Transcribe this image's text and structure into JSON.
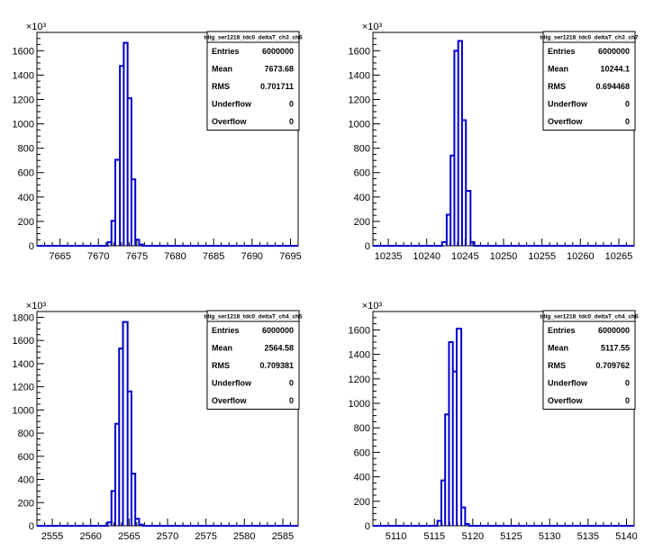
{
  "chart_data": [
    {
      "type": "histogram",
      "name": "tdig_ser1218_tdc0_deltaT_ch3_ch6",
      "x_range": [
        7662,
        7696
      ],
      "x_ticks": [
        7665,
        7670,
        7675,
        7680,
        7685,
        7690,
        7695
      ],
      "y_range": [
        0,
        1750
      ],
      "y_ticks": [
        0,
        200,
        400,
        600,
        800,
        1000,
        1200,
        1400,
        1600
      ],
      "y_exponent_label": "×10³",
      "bins": [
        [
          7671.2,
          7671.7,
          30
        ],
        [
          7671.7,
          7672.2,
          205
        ],
        [
          7672.2,
          7672.8,
          705
        ],
        [
          7672.8,
          7673.3,
          1475
        ],
        [
          7673.3,
          7673.8,
          1665
        ],
        [
          7673.8,
          7674.3,
          1210
        ],
        [
          7674.3,
          7674.8,
          545
        ],
        [
          7674.8,
          7675.3,
          50
        ],
        [
          7675.3,
          7675.8,
          10
        ]
      ],
      "stats": {
        "title": "tdig_ser1218_tdc0_deltaT_ch3_ch6",
        "rows": [
          {
            "label": "Entries",
            "value": "6000000"
          },
          {
            "label": "Mean",
            "value": "7673.68"
          },
          {
            "label": "RMS",
            "value": "0.701711"
          },
          {
            "label": "Underflow",
            "value": "0"
          },
          {
            "label": "Overflow",
            "value": "0"
          }
        ]
      },
      "line_color": "#0000cc"
    },
    {
      "type": "histogram",
      "name": "tdig_ser1218_tdc0_deltaT_ch3_ch7",
      "x_range": [
        10233,
        10267
      ],
      "x_ticks": [
        10235,
        10240,
        10245,
        10250,
        10255,
        10260,
        10265
      ],
      "y_range": [
        0,
        1750
      ],
      "y_ticks": [
        0,
        200,
        400,
        600,
        800,
        1000,
        1200,
        1400,
        1600
      ],
      "y_exponent_label": "×10³",
      "bins": [
        [
          10242.0,
          10242.6,
          30
        ],
        [
          10242.6,
          10243.1,
          255
        ],
        [
          10243.1,
          10243.6,
          740
        ],
        [
          10243.6,
          10244.1,
          1600
        ],
        [
          10244.1,
          10244.6,
          1680
        ],
        [
          10244.6,
          10245.1,
          1030
        ],
        [
          10245.1,
          10245.7,
          450
        ],
        [
          10245.7,
          10246.2,
          30
        ]
      ],
      "stats": {
        "title": "tdig_ser1218_tdc0_deltaT_ch3_ch7",
        "rows": [
          {
            "label": "Entries",
            "value": "6000000"
          },
          {
            "label": "Mean",
            "value": "10244.1"
          },
          {
            "label": "RMS",
            "value": "0.694468"
          },
          {
            "label": "Underflow",
            "value": "0"
          },
          {
            "label": "Overflow",
            "value": "0"
          }
        ]
      },
      "line_color": "#0000cc"
    },
    {
      "type": "histogram",
      "name": "tdig_ser1218_tdc0_deltaT_ch4_ch5",
      "x_range": [
        2553,
        2587
      ],
      "x_ticks": [
        2555,
        2560,
        2565,
        2570,
        2575,
        2580,
        2585
      ],
      "y_range": [
        0,
        1850
      ],
      "y_ticks": [
        0,
        200,
        400,
        600,
        800,
        1000,
        1200,
        1400,
        1600,
        1800
      ],
      "y_exponent_label": "×10³",
      "bins": [
        [
          2562.2,
          2562.7,
          30
        ],
        [
          2562.7,
          2563.2,
          300
        ],
        [
          2563.2,
          2563.7,
          880
        ],
        [
          2563.7,
          2564.2,
          1530
        ],
        [
          2564.2,
          2564.8,
          1760
        ],
        [
          2564.8,
          2565.3,
          1160
        ],
        [
          2565.3,
          2565.8,
          450
        ],
        [
          2565.8,
          2566.3,
          60
        ],
        [
          2566.3,
          2566.8,
          10
        ]
      ],
      "stats": {
        "title": "tdig_ser1218_tdc0_deltaT_ch4_ch5",
        "rows": [
          {
            "label": "Entries",
            "value": "6000000"
          },
          {
            "label": "Mean",
            "value": "2564.58"
          },
          {
            "label": "RMS",
            "value": "0.709381"
          },
          {
            "label": "Underflow",
            "value": "0"
          },
          {
            "label": "Overflow",
            "value": "0"
          }
        ]
      },
      "line_color": "#0000cc"
    },
    {
      "type": "histogram",
      "name": "tdig_ser1218_tdc0_deltaT_ch4_ch6",
      "x_range": [
        5107,
        5141
      ],
      "x_ticks": [
        5110,
        5115,
        5120,
        5125,
        5130,
        5135,
        5140
      ],
      "y_range": [
        0,
        1750
      ],
      "y_ticks": [
        0,
        200,
        400,
        600,
        800,
        1000,
        1200,
        1400,
        1600
      ],
      "y_exponent_label": "×10³",
      "bins": [
        [
          5115.4,
          5115.9,
          40
        ],
        [
          5115.9,
          5116.4,
          370
        ],
        [
          5116.4,
          5116.9,
          910
        ],
        [
          5116.9,
          5117.4,
          1500
        ],
        [
          5117.4,
          5117.9,
          1260
        ],
        [
          5117.9,
          5118.5,
          1610
        ],
        [
          5118.5,
          5119.0,
          150
        ],
        [
          5119.0,
          5119.5,
          15
        ]
      ],
      "stats": {
        "title": "tdig_ser1218_tdc0_deltaT_ch4_ch6",
        "rows": [
          {
            "label": "Entries",
            "value": "6000000"
          },
          {
            "label": "Mean",
            "value": "5117.55"
          },
          {
            "label": "RMS",
            "value": "0.709762"
          },
          {
            "label": "Underflow",
            "value": "0"
          },
          {
            "label": "Overflow",
            "value": "0"
          }
        ]
      },
      "line_color": "#0000cc"
    }
  ]
}
